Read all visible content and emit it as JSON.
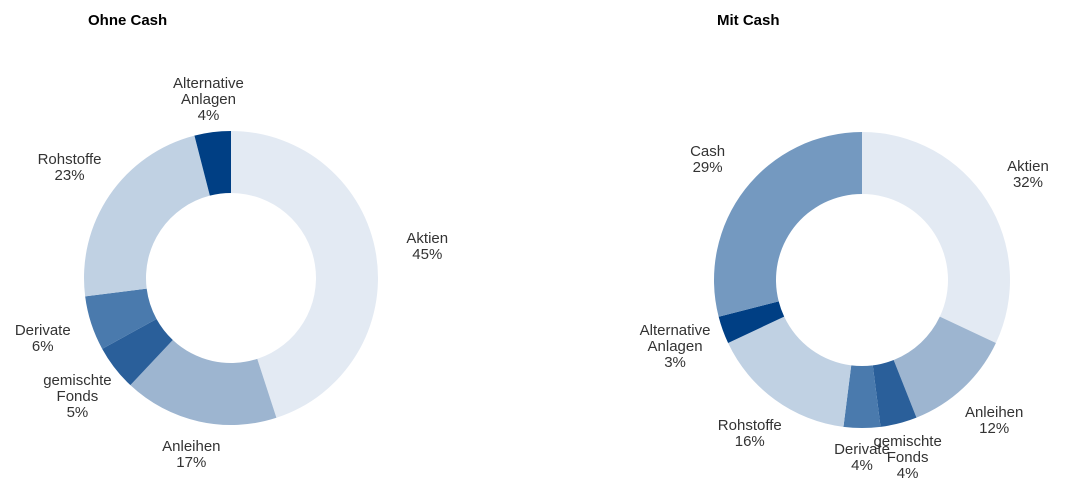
{
  "chart_data": [
    {
      "type": "donut",
      "title": "Ohne Cash",
      "categories": [
        "Aktien",
        "Anleihen",
        "gemischte Fonds",
        "Derivate",
        "Rohstoffe",
        "Alternative Anlagen"
      ],
      "values": [
        45,
        17,
        5,
        6,
        23,
        4
      ],
      "value_labels": [
        "45%",
        "17%",
        "5%",
        "6%",
        "23%",
        "4%"
      ],
      "colors": [
        "#e3eaf3",
        "#9db5d0",
        "#2a5f9a",
        "#4a7aad",
        "#c0d1e3",
        "#003f84"
      ]
    },
    {
      "type": "donut",
      "title": "Mit Cash",
      "categories": [
        "Aktien",
        "Anleihen",
        "gemischte Fonds",
        "Derivate",
        "Rohstoffe",
        "Alternative Anlagen",
        "Cash"
      ],
      "values": [
        32,
        12,
        4,
        4,
        16,
        3,
        29
      ],
      "value_labels": [
        "32%",
        "12%",
        "4%",
        "4%",
        "16%",
        "3%",
        "29%"
      ],
      "colors": [
        "#e3eaf3",
        "#9db5d0",
        "#2a5f9a",
        "#4a7aad",
        "#c0d1e3",
        "#003f84",
        "#7499c0"
      ]
    }
  ]
}
